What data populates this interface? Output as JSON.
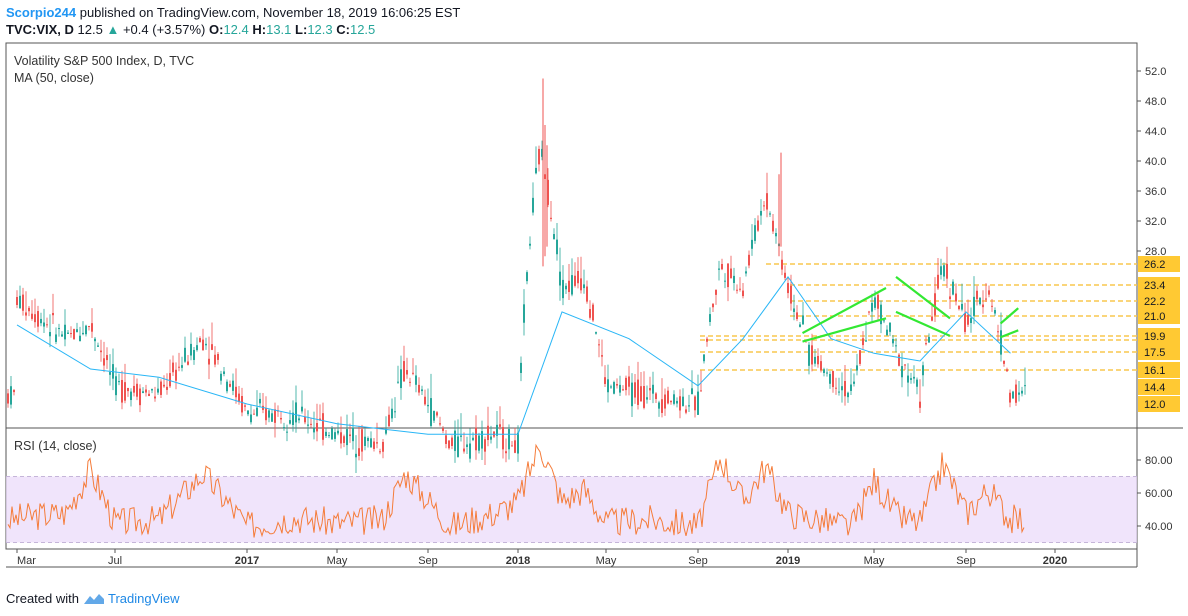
{
  "header": {
    "author": "Scorpio244",
    "published_text": "published on TradingView.com, November 18, 2019 16:06:25 EST",
    "symbol": "TVC:VIX, D",
    "last": "12.5",
    "change": "+0.4 (+3.57%)",
    "o_label": "O:",
    "o_val": "12.4",
    "h_label": "H:",
    "h_val": "13.1",
    "l_label": "L:",
    "l_val": "12.3",
    "c_label": "C:",
    "c_val": "12.5"
  },
  "main_panel": {
    "title": "Volatility S&P 500 Index, D, TVC",
    "indicator": "MA (50, close)"
  },
  "rsi_panel": {
    "title": "RSI (14, close)"
  },
  "footer": {
    "created_with": "Created with",
    "brand": "TradingView"
  },
  "colors": {
    "candle_up": "#26a69a",
    "candle_down": "#ef5350",
    "ma": "#29b6f6",
    "level_line": "#f9c74f",
    "level_label_bg": "#ffc933",
    "trend_lines": "#33e833",
    "rsi_line": "#f57c3a",
    "rsi_band": "#e9d8f9"
  },
  "chart_data": [
    {
      "type": "line",
      "title": "Volatility S&P 500 Index, D, TVC",
      "x_tick_labels": [
        "Mar",
        "Jul",
        "2017",
        "May",
        "Sep",
        "2018",
        "May",
        "Sep",
        "2019",
        "May",
        "Sep",
        "2020"
      ],
      "y_tick_labels": [
        "52.0",
        "48.0",
        "44.0",
        "40.0",
        "36.0",
        "32.0",
        "28.0"
      ],
      "ylim": [
        9.5,
        54
      ],
      "scale": "log",
      "series": [
        {
          "name": "VIX close",
          "x": [
            "2016-03",
            "2016-05",
            "2016-06",
            "2016-07",
            "2016-09",
            "2016-11",
            "2017-01",
            "2017-03",
            "2017-05",
            "2017-07",
            "2017-08",
            "2017-10",
            "2017-12",
            "2018-01",
            "2018-02",
            "2018-03",
            "2018-04",
            "2018-05",
            "2018-07",
            "2018-09",
            "2018-10",
            "2018-11",
            "2018-12",
            "2019-01",
            "2019-02",
            "2019-03",
            "2019-04",
            "2019-05",
            "2019-06",
            "2019-07",
            "2019-08",
            "2019-09",
            "2019-10",
            "2019-11"
          ],
          "values": [
            19,
            16,
            17,
            13,
            12.5,
            16,
            11.5,
            11.5,
            10.5,
            10,
            14,
            10,
            10.5,
            10,
            37,
            20,
            21,
            13,
            12.5,
            12,
            22,
            20,
            30,
            20,
            15,
            13.5,
            12.5,
            19,
            15,
            12.5,
            22,
            17,
            20,
            12.5
          ]
        },
        {
          "name": "MA (50, close)",
          "x": [
            "2016-03",
            "2016-06",
            "2016-09",
            "2017-01",
            "2017-05",
            "2017-09",
            "2018-01",
            "2018-03",
            "2018-06",
            "2018-09",
            "2018-11",
            "2019-01",
            "2019-03",
            "2019-05",
            "2019-07",
            "2019-09",
            "2019-11"
          ],
          "values": [
            17,
            14,
            13.5,
            12,
            11,
            10.5,
            10.5,
            18,
            16,
            13,
            16,
            21,
            16,
            15,
            14.5,
            18,
            15
          ]
        }
      ],
      "horizontal_levels": [
        "26.2",
        "23.4",
        "22.2",
        "21.0",
        "19.9",
        "17.5",
        "16.1"
      ],
      "price_labels": [
        "26.2",
        "23.4",
        "22.2",
        "21.0",
        "19.9",
        "17.5",
        "16.1",
        "14.4",
        "12.0"
      ],
      "level_values": [
        26.2,
        23.4,
        22.2,
        21.0,
        19.9,
        18.7,
        17.5,
        16.1
      ],
      "trend_markings": [
        {
          "from": [
            "2019-03",
            20
          ],
          "to": [
            "2019-04",
            16.4
          ]
        },
        {
          "from": [
            "2019-03",
            17.5
          ],
          "to": [
            "2019-04",
            15.8
          ]
        },
        {
          "from": [
            "2019-05",
            21
          ],
          "to": [
            "2019-07",
            17.5
          ]
        },
        {
          "from": [
            "2019-05",
            18
          ],
          "to": [
            "2019-07",
            16.2
          ]
        },
        {
          "from": [
            "2019-10",
            18.3
          ],
          "to": [
            "2019-11",
            17.1
          ]
        },
        {
          "from": [
            "2019-10",
            16.6
          ],
          "to": [
            "2019-11",
            16.1
          ]
        }
      ]
    },
    {
      "type": "line",
      "title": "RSI (14, close)",
      "x_tick_labels": [
        "Mar",
        "Jul",
        "2017",
        "May",
        "Sep",
        "2018",
        "May",
        "Sep",
        "2019",
        "May",
        "Sep",
        "2020"
      ],
      "y_tick_labels": [
        "80.00",
        "60.00",
        "40.00"
      ],
      "ylim": [
        28,
        95
      ],
      "band": [
        30,
        70
      ],
      "series": [
        {
          "name": "RSI",
          "x": [
            "2016-03",
            "2016-05",
            "2016-06",
            "2016-07",
            "2016-09",
            "2016-11",
            "2017-01",
            "2017-03",
            "2017-05",
            "2017-07",
            "2017-08",
            "2017-10",
            "2017-12",
            "2018-01",
            "2018-02",
            "2018-03",
            "2018-04",
            "2018-05",
            "2018-07",
            "2018-09",
            "2018-10",
            "2018-11",
            "2018-12",
            "2019-01",
            "2019-02",
            "2019-03",
            "2019-04",
            "2019-05",
            "2019-06",
            "2019-07",
            "2019-08",
            "2019-09",
            "2019-10",
            "2019-11"
          ],
          "values": [
            45,
            48,
            74,
            42,
            44,
            72,
            40,
            45,
            42,
            44,
            72,
            40,
            48,
            55,
            90,
            55,
            62,
            42,
            44,
            40,
            82,
            55,
            76,
            48,
            45,
            42,
            40,
            68,
            46,
            42,
            78,
            48,
            62,
            44
          ]
        }
      ]
    }
  ]
}
